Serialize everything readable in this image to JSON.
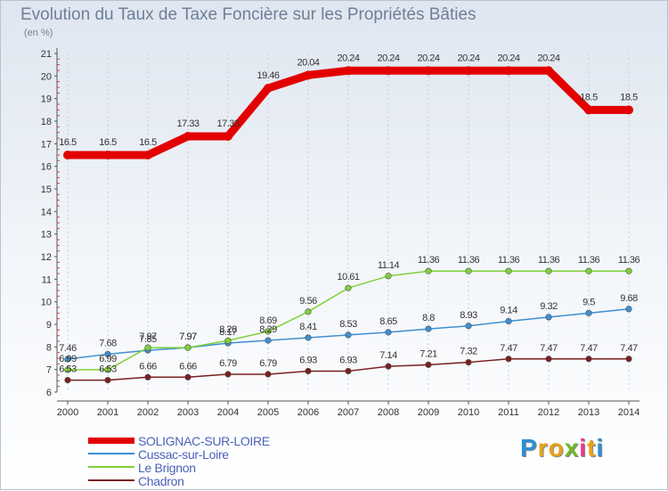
{
  "header": {
    "title": "Evolution du Taux de Taxe Foncière sur les Propriétés Bâties",
    "subtitle": "(en %)"
  },
  "chart_data": {
    "type": "line",
    "title": "Evolution du Taux de Taxe Foncière sur les Propriétés Bâties",
    "ylabel": "(en %)",
    "xlabel": "",
    "x": [
      "2000",
      "2001",
      "2002",
      "2003",
      "2004",
      "2005",
      "2006",
      "2007",
      "2008",
      "2009",
      "2010",
      "2011",
      "2012",
      "2013",
      "2014"
    ],
    "ylim": [
      6,
      21
    ],
    "yticks": [
      6,
      7,
      8,
      9,
      10,
      11,
      12,
      13,
      14,
      15,
      16,
      17,
      18,
      19,
      20,
      21
    ],
    "grid": "vertical",
    "legend_position": "bottom-left",
    "series": [
      {
        "name": "SOLIGNAC-SUR-LOIRE",
        "color": "#e30000",
        "values": [
          16.5,
          16.5,
          16.5,
          17.33,
          17.33,
          19.46,
          20.04,
          20.24,
          20.24,
          20.24,
          20.24,
          20.24,
          20.24,
          18.5,
          18.5
        ],
        "labels": [
          "16.5",
          "16.5",
          "16.5",
          "17.33",
          "17.33",
          "19.46",
          "20.04",
          "20.24",
          "20.24",
          "20.24",
          "20.24",
          "20.24",
          "20.24",
          "18.5",
          "18.5"
        ]
      },
      {
        "name": "Cussac-sur-Loire",
        "color": "#3d8fd1",
        "values": [
          7.46,
          7.68,
          7.85,
          7.97,
          8.17,
          8.29,
          8.41,
          8.53,
          8.65,
          8.8,
          8.93,
          9.14,
          9.32,
          9.5,
          9.68
        ],
        "labels": [
          "7.46",
          "7.68",
          "7.85",
          "7.97",
          "8.17",
          "8.29",
          "8.41",
          "8.53",
          "8.65",
          "8.8",
          "8.93",
          "9.14",
          "9.32",
          "9.5",
          "9.68"
        ]
      },
      {
        "name": "Le Brignon",
        "color": "#7fd13a",
        "values": [
          6.99,
          6.99,
          7.97,
          7.97,
          8.28,
          8.69,
          9.56,
          10.61,
          11.14,
          11.36,
          11.36,
          11.36,
          11.36,
          11.36,
          11.36
        ],
        "labels": [
          "6.99",
          "6.99",
          "7.97",
          "7.97",
          "8.28",
          "8.69",
          "9.56",
          "10.61",
          "11.14",
          "11.36",
          "11.36",
          "11.36",
          "11.36",
          "11.36",
          "11.36"
        ]
      },
      {
        "name": "Chadron",
        "color": "#7a1f1f",
        "values": [
          6.53,
          6.53,
          6.66,
          6.66,
          6.79,
          6.79,
          6.93,
          6.93,
          7.14,
          7.21,
          7.32,
          7.47,
          7.47,
          7.47,
          7.47
        ],
        "labels": [
          "6.53",
          "6.53",
          "6.66",
          "6.66",
          "6.79",
          "6.79",
          "6.93",
          "6.93",
          "7.14",
          "7.21",
          "7.32",
          "7.47",
          "7.47",
          "7.47",
          "7.47"
        ]
      }
    ]
  },
  "brand": {
    "letters": [
      "P",
      "r",
      "o",
      "x",
      "i",
      "t",
      "i"
    ],
    "colors": [
      "#2c8fd6",
      "#e8a316",
      "#e8a316",
      "#6cb82c",
      "#e83a8c",
      "#e8a316",
      "#2c8fd6"
    ]
  }
}
